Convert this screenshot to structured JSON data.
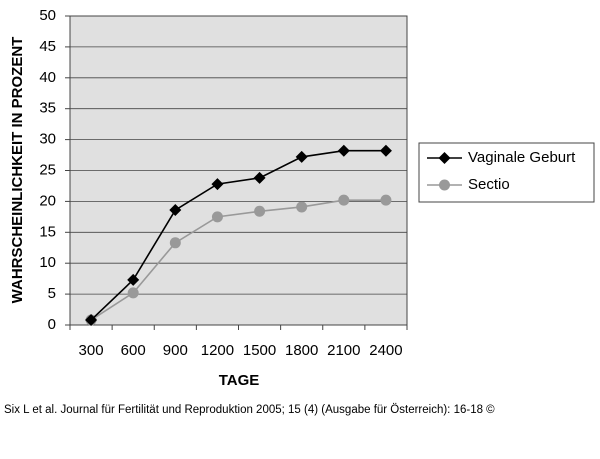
{
  "chart_data": {
    "type": "line",
    "y_label": "WAHRSCHEINLICHKEIT IN PROZENT",
    "x_label": "TAGE",
    "categories": [
      "300",
      "600",
      "900",
      "1200",
      "1500",
      "1800",
      "2100",
      "2400"
    ],
    "series": [
      {
        "name": "Vaginale Geburt",
        "color": "#000000",
        "marker": "diamond",
        "values": [
          0.8,
          7.3,
          18.6,
          22.8,
          23.8,
          27.2,
          28.2,
          28.2
        ]
      },
      {
        "name": "Sectio",
        "color": "#999999",
        "marker": "circle",
        "values": [
          0.8,
          5.2,
          13.3,
          17.5,
          18.4,
          19.1,
          20.2,
          20.2
        ]
      }
    ],
    "ylim": [
      0,
      50
    ],
    "yticks": [
      0,
      5,
      10,
      15,
      20,
      25,
      30,
      35,
      40,
      45,
      50
    ],
    "grid": true,
    "legend": "right",
    "source": "Six L et al. Journal für Fertilität und Reproduktion 2005; 15 (4) (Ausgabe für Österreich): 16-18 ©"
  }
}
